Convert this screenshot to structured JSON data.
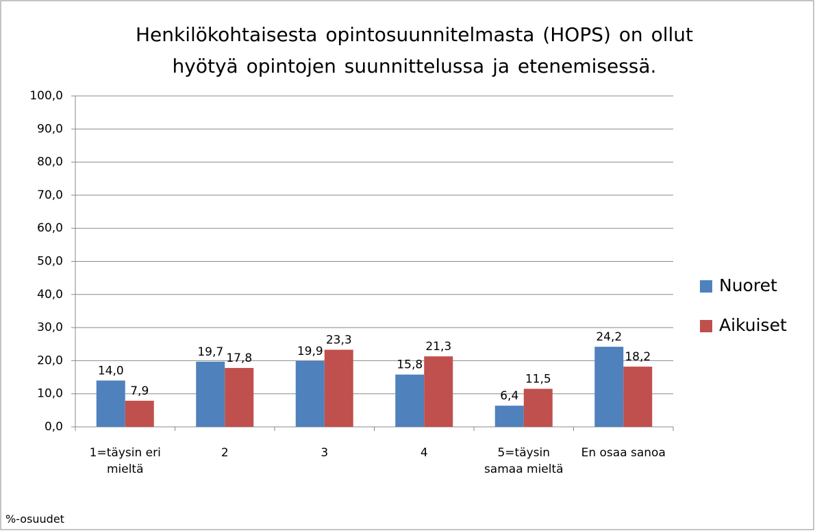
{
  "chart_data": {
    "type": "bar",
    "title": "Henkilökohtaisesta opintosuunnitelmasta (HOPS) on ollut hyötyä opintojen suunnittelussa ja etenemisessä.",
    "categories": [
      "1=täysin eri mieltä",
      "2",
      "3",
      "4",
      "5=täysin samaa mieltä",
      "En osaa sanoa"
    ],
    "series": [
      {
        "name": "Nuoret",
        "color": "#4f81bd",
        "values": [
          14.0,
          19.7,
          19.9,
          15.8,
          6.4,
          24.2
        ],
        "value_labels": [
          "14,0",
          "19,7",
          "19,9",
          "15,8",
          "6,4",
          "24,2"
        ]
      },
      {
        "name": "Aikuiset",
        "color": "#c0504d",
        "values": [
          7.9,
          17.8,
          23.3,
          21.3,
          11.5,
          18.2
        ],
        "value_labels": [
          "7,9",
          "17,8",
          "23,3",
          "21,3",
          "11,5",
          "18,2"
        ]
      }
    ],
    "ylim": [
      0,
      100
    ],
    "yticks": [
      {
        "value": 0,
        "label": "0,0"
      },
      {
        "value": 10,
        "label": "10,0"
      },
      {
        "value": 20,
        "label": "20,0"
      },
      {
        "value": 30,
        "label": "30,0"
      },
      {
        "value": 40,
        "label": "40,0"
      },
      {
        "value": 50,
        "label": "50,0"
      },
      {
        "value": 60,
        "label": "60,0"
      },
      {
        "value": 70,
        "label": "70,0"
      },
      {
        "value": 80,
        "label": "80,0"
      },
      {
        "value": 90,
        "label": "90,0"
      },
      {
        "value": 100,
        "label": "100,0"
      }
    ],
    "grid": true,
    "legend": "right",
    "note": "%-osuudet"
  }
}
